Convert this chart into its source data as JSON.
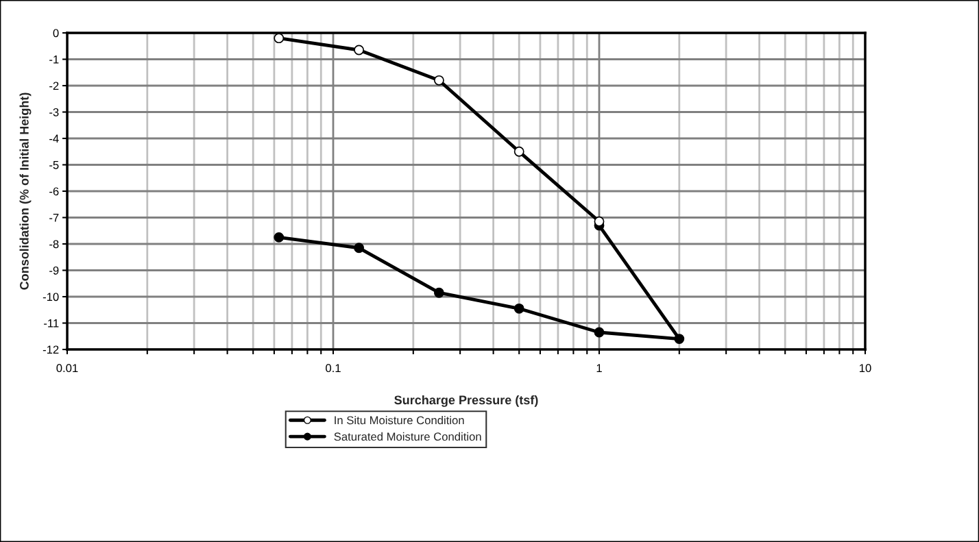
{
  "chart_data": {
    "type": "line",
    "xlabel": "Surcharge Pressure (tsf)",
    "ylabel": "Consolidation (% of Initial Height)",
    "series": [
      {
        "name": "In Situ Moisture Condition",
        "color": "#000000",
        "colors": [
          "#ffffff",
          "#ffffff",
          "#ffffff",
          "#ffffff",
          "#ffffff"
        ],
        "x": [
          0.0625,
          0.125,
          0.25,
          0.5,
          1
        ],
        "values": [
          -0.2,
          -0.65,
          -1.8,
          -4.5,
          -7.15
        ]
      },
      {
        "name": "Saturated Moisture Condition",
        "color": "#000000",
        "colors": [
          "#000000",
          "#000000",
          "#000000",
          "#000000",
          "#000000",
          "#000000",
          "#000000"
        ],
        "x": [
          1,
          2,
          1,
          0.5,
          0.25,
          0.125,
          0.0625
        ],
        "values": [
          -7.3,
          -11.6,
          -11.35,
          -10.45,
          -9.85,
          -8.15,
          -7.75
        ]
      }
    ],
    "log": "x",
    "xlim": [
      0.01,
      10
    ],
    "xticks": [
      0.01,
      0.1,
      1,
      10
    ],
    "ylim": [
      -12,
      0
    ],
    "yticks": [
      0,
      -1,
      -2,
      -3,
      -4,
      -5,
      -6,
      -7,
      -8,
      -9,
      -10,
      -11,
      -12
    ],
    "grid": true,
    "legend": "bottom",
    "marker": "circle",
    "line_style": "solid"
  }
}
